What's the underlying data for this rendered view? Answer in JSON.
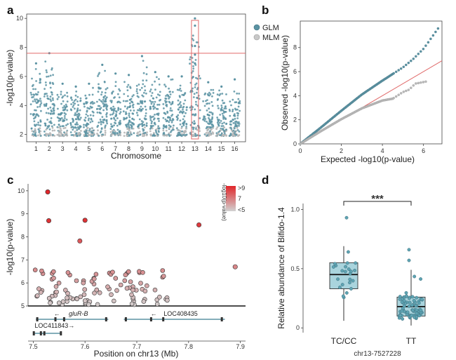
{
  "panel_labels": [
    "a",
    "b",
    "c",
    "d"
  ],
  "colors": {
    "glm": "#5b93a3",
    "mlm": "#b9b9b9",
    "threshold": "#e06a6a",
    "box_fill": "#8cc6d2",
    "box_point": "#5ea4b3",
    "heat_high": "#e0262a",
    "heat_low": "#c8c8c8"
  },
  "chart_data": [
    {
      "panel": "a",
      "type": "scatter",
      "subtype": "manhattan",
      "ylabel": "-log10(p-value)",
      "xlabel": "Chromosome",
      "categories": [
        "1",
        "2",
        "3",
        "4",
        "5",
        "6",
        "7",
        "8",
        "9",
        "10",
        "11",
        "12",
        "13",
        "14",
        "15",
        "16"
      ],
      "ylim": [
        1.5,
        10.3
      ],
      "yticks": [
        2,
        4,
        6,
        8,
        10
      ],
      "threshold": 7.6,
      "highlight_chromosome": "13",
      "series": [
        {
          "name": "GLM"
        },
        {
          "name": "MLM"
        }
      ],
      "chromosome_peaks": [
        6.9,
        7.6,
        5.5,
        5.3,
        5.5,
        6.8,
        6.2,
        6.1,
        7.4,
        6.3,
        6.0,
        6.0,
        10.0,
        5.6,
        5.3,
        5.8
      ]
    },
    {
      "panel": "b",
      "type": "scatter",
      "subtype": "qq",
      "xlabel": "Expected -log10(p-value)",
      "ylabel": "Observed -log10(p-value)",
      "xlim": [
        0,
        6.9
      ],
      "ylim": [
        0,
        10.2
      ],
      "xticks": [
        0,
        2,
        4,
        6
      ],
      "yticks": [
        0,
        2,
        4,
        6,
        8
      ],
      "series": [
        {
          "name": "GLM",
          "points": [
            [
              0,
              0
            ],
            [
              1,
              1.35
            ],
            [
              2,
              2.75
            ],
            [
              3,
              4.1
            ],
            [
              4,
              5.25
            ],
            [
              4.5,
              5.8
            ],
            [
              5,
              6.35
            ],
            [
              5.5,
              7.05
            ],
            [
              6,
              7.9
            ],
            [
              6.3,
              8.6
            ],
            [
              6.8,
              9.8
            ]
          ]
        },
        {
          "name": "MLM",
          "points": [
            [
              0,
              0
            ],
            [
              1,
              1.05
            ],
            [
              2,
              2.05
            ],
            [
              3,
              2.95
            ],
            [
              4,
              3.6
            ],
            [
              4.5,
              3.75
            ],
            [
              5,
              4.3
            ],
            [
              5.3,
              4.5
            ],
            [
              5.6,
              5.0
            ],
            [
              6.2,
              5.2
            ]
          ]
        }
      ],
      "reference_line": [
        [
          0,
          0
        ],
        [
          6.9,
          6.9
        ]
      ]
    },
    {
      "panel": "c",
      "type": "scatter",
      "subtype": "regional",
      "xlabel": "Position on chr13 (Mb)",
      "ylabel": "-log10(p-value)",
      "xlim": [
        7.49,
        7.91
      ],
      "ylim": [
        5,
        10.3
      ],
      "xticks": [
        7.5,
        7.6,
        7.7,
        7.8,
        7.9
      ],
      "yticks": [
        5,
        6,
        7,
        8,
        9,
        10
      ],
      "colorbar": {
        "title": "-log10(p-value)",
        "labels": [
          ">9",
          "7",
          "<5"
        ]
      },
      "top_points": [
        [
          7.528,
          9.95
        ],
        [
          7.53,
          8.7
        ],
        [
          7.6,
          8.72
        ],
        [
          7.59,
          7.82
        ],
        [
          7.82,
          8.52
        ],
        [
          7.89,
          6.7
        ]
      ],
      "genes": [
        {
          "name": "gluR-B",
          "arrow": "←",
          "start": 7.505,
          "end": 7.645,
          "row": 1
        },
        {
          "name": "LOC408435",
          "arrow": "←",
          "start": 7.675,
          "end": 7.87,
          "row": 1
        },
        {
          "name": "LOC411843",
          "arrow": "→",
          "start": 7.5,
          "end": 7.555,
          "row": 2
        }
      ]
    },
    {
      "panel": "d",
      "type": "box",
      "ylabel": "Relative abundance of Bifido-1.4",
      "xlabel": "chr13-7527228",
      "categories": [
        "TC/CC",
        "TT"
      ],
      "ylim": [
        -0.04,
        1.05
      ],
      "yticks": [
        0,
        0.5,
        1.0
      ],
      "ytick_labels": [
        "0",
        "0.5",
        "1.0"
      ],
      "significance": "***",
      "boxes": [
        {
          "name": "TC/CC",
          "min": 0.06,
          "q1": 0.33,
          "median": 0.45,
          "q3": 0.55,
          "max": 0.69,
          "outliers": [
            0.93
          ]
        },
        {
          "name": "TT",
          "min": 0.02,
          "q1": 0.1,
          "median": 0.18,
          "q3": 0.26,
          "max": 0.49,
          "outliers": [
            0.57,
            0.66
          ]
        }
      ]
    }
  ]
}
